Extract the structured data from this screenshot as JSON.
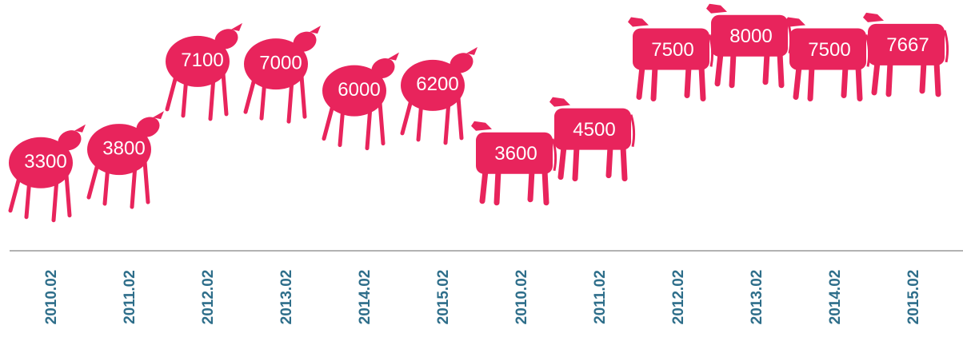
{
  "chart_data": [
    {
      "type": "sheep",
      "color": "#e8245c",
      "categories": [
        "2010.02",
        "2011.02",
        "2012.02",
        "2013.02",
        "2014.02",
        "2015.02"
      ],
      "values": [
        3300,
        3800,
        7100,
        7000,
        6000,
        6200
      ],
      "ylim": [
        0,
        9400
      ]
    },
    {
      "type": "cow",
      "color": "#e8245c",
      "categories": [
        "2010.02",
        "2011.02",
        "2012.02",
        "2013.02",
        "2014.02",
        "2015.02"
      ],
      "values": [
        3600,
        4500,
        7500,
        8000,
        7500,
        7667
      ],
      "ylim": [
        0,
        9400
      ]
    }
  ]
}
